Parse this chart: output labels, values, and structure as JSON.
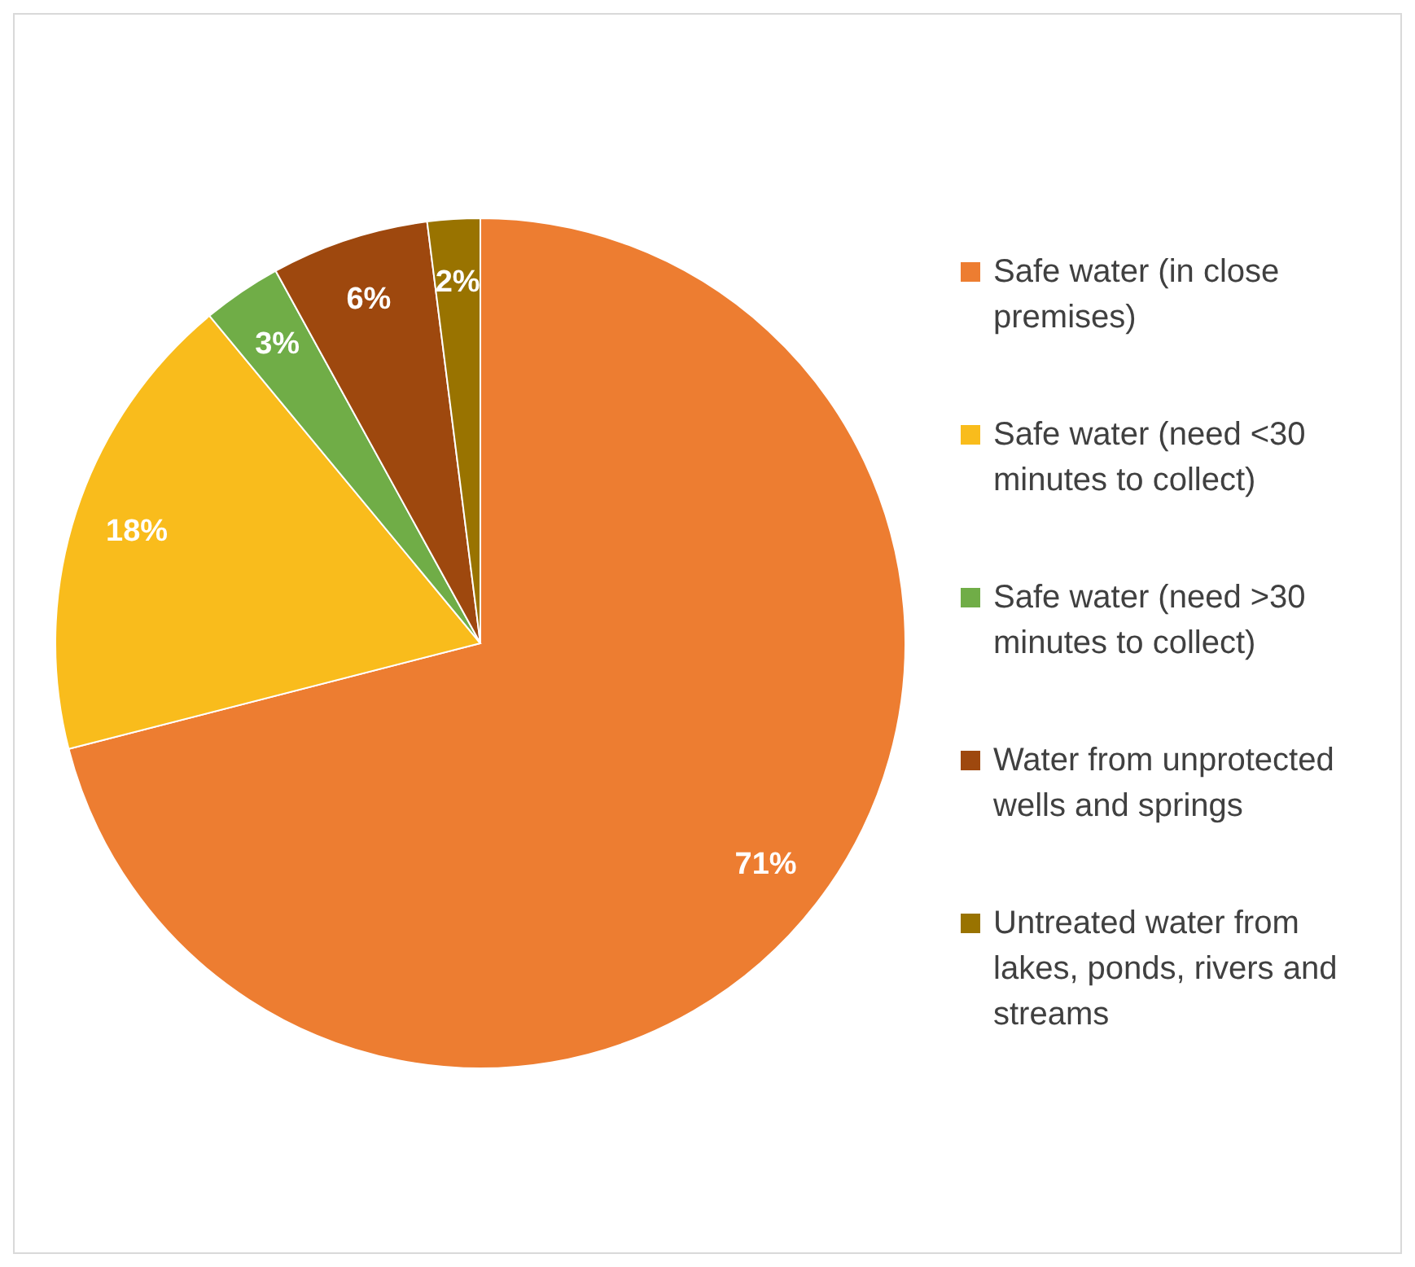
{
  "chart_data": {
    "type": "pie",
    "categories": [
      "Safe water (in close premises)",
      "Safe water (need <30 minutes to collect)",
      "Safe water (need >30 minutes to collect)",
      "Water from unprotected wells and springs",
      "Untreated water from lakes, ponds, rivers and streams"
    ],
    "values": [
      71,
      18,
      3,
      6,
      2
    ],
    "value_labels": [
      "71%",
      "18%",
      "3%",
      "6%",
      "2%"
    ],
    "colors": [
      "#ed7d31",
      "#f9bc1c",
      "#70ad47",
      "#9e480e",
      "#997300"
    ],
    "legend": "right"
  }
}
